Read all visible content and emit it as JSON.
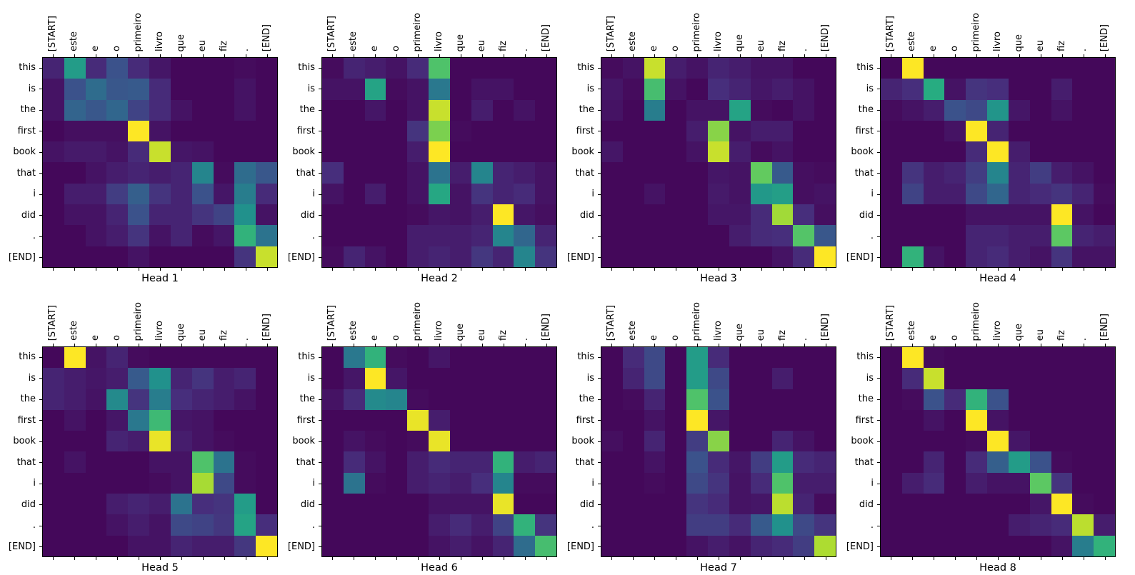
{
  "figure": {
    "background_color": "#ffffff",
    "text_color": "#000000",
    "panels_per_row": 4,
    "panel_rows": 2
  },
  "chart_data": {
    "type": "heatmap",
    "colormap": "viridis",
    "color_range": [
      0,
      1
    ],
    "grid": false,
    "x_axis_position": "top",
    "x_tick_rotation": 90,
    "x_tick_labels": [
      "[START]",
      "este",
      "e",
      "o",
      "primeiro",
      "livro",
      "que",
      "eu",
      "fiz",
      ".",
      "[END]"
    ],
    "y_tick_labels": [
      "this",
      "is",
      "the",
      "first",
      "book",
      "that",
      "i",
      "did",
      ".",
      "[END]"
    ],
    "heads": [
      {
        "title": "Head 1",
        "values": [
          [
            0.1,
            0.55,
            0.12,
            0.25,
            0.12,
            0.06,
            0.02,
            0.02,
            0.02,
            0.03,
            0.02
          ],
          [
            0.05,
            0.25,
            0.35,
            0.27,
            0.28,
            0.12,
            0.02,
            0.02,
            0.02,
            0.05,
            0.02
          ],
          [
            0.05,
            0.32,
            0.27,
            0.33,
            0.2,
            0.12,
            0.05,
            0.02,
            0.02,
            0.05,
            0.02
          ],
          [
            0.02,
            0.04,
            0.04,
            0.04,
            1.0,
            0.05,
            0.02,
            0.02,
            0.02,
            0.02,
            0.02
          ],
          [
            0.05,
            0.07,
            0.07,
            0.05,
            0.12,
            0.92,
            0.06,
            0.05,
            0.02,
            0.02,
            0.02
          ],
          [
            0.02,
            0.02,
            0.05,
            0.08,
            0.1,
            0.08,
            0.1,
            0.45,
            0.03,
            0.35,
            0.27
          ],
          [
            0.02,
            0.08,
            0.08,
            0.18,
            0.3,
            0.15,
            0.1,
            0.25,
            0.06,
            0.42,
            0.12
          ],
          [
            0.02,
            0.05,
            0.05,
            0.1,
            0.25,
            0.1,
            0.1,
            0.15,
            0.2,
            0.5,
            0.05
          ],
          [
            0.02,
            0.02,
            0.05,
            0.08,
            0.15,
            0.05,
            0.1,
            0.03,
            0.06,
            0.65,
            0.38
          ],
          [
            0.02,
            0.02,
            0.02,
            0.02,
            0.05,
            0.02,
            0.02,
            0.02,
            0.02,
            0.15,
            0.92
          ]
        ]
      },
      {
        "title": "Head 2",
        "values": [
          [
            0.03,
            0.1,
            0.08,
            0.05,
            0.12,
            0.72,
            0.02,
            0.02,
            0.02,
            0.02,
            0.02
          ],
          [
            0.05,
            0.05,
            0.58,
            0.03,
            0.05,
            0.4,
            0.02,
            0.05,
            0.05,
            0.02,
            0.02
          ],
          [
            0.02,
            0.02,
            0.06,
            0.02,
            0.05,
            0.92,
            0.02,
            0.08,
            0.02,
            0.05,
            0.02
          ],
          [
            0.02,
            0.02,
            0.02,
            0.02,
            0.15,
            0.8,
            0.03,
            0.02,
            0.02,
            0.02,
            0.02
          ],
          [
            0.02,
            0.02,
            0.02,
            0.02,
            0.08,
            1.0,
            0.02,
            0.02,
            0.02,
            0.02,
            0.02
          ],
          [
            0.13,
            0.02,
            0.02,
            0.02,
            0.05,
            0.38,
            0.08,
            0.45,
            0.1,
            0.08,
            0.05
          ],
          [
            0.05,
            0.02,
            0.08,
            0.02,
            0.05,
            0.6,
            0.05,
            0.15,
            0.1,
            0.12,
            0.05
          ],
          [
            0.02,
            0.02,
            0.02,
            0.02,
            0.03,
            0.06,
            0.05,
            0.08,
            1.0,
            0.06,
            0.04
          ],
          [
            0.02,
            0.02,
            0.02,
            0.02,
            0.08,
            0.08,
            0.08,
            0.1,
            0.45,
            0.33,
            0.1
          ],
          [
            0.03,
            0.1,
            0.05,
            0.02,
            0.08,
            0.1,
            0.08,
            0.16,
            0.1,
            0.45,
            0.15
          ]
        ]
      },
      {
        "title": "Head 3",
        "values": [
          [
            0.03,
            0.05,
            0.92,
            0.08,
            0.05,
            0.1,
            0.08,
            0.05,
            0.05,
            0.02,
            0.02
          ],
          [
            0.06,
            0.03,
            0.7,
            0.05,
            0.02,
            0.13,
            0.1,
            0.06,
            0.08,
            0.05,
            0.02
          ],
          [
            0.05,
            0.02,
            0.42,
            0.02,
            0.05,
            0.05,
            0.58,
            0.03,
            0.02,
            0.05,
            0.02
          ],
          [
            0.02,
            0.02,
            0.02,
            0.02,
            0.08,
            0.82,
            0.05,
            0.08,
            0.08,
            0.02,
            0.02
          ],
          [
            0.06,
            0.02,
            0.02,
            0.02,
            0.05,
            0.92,
            0.08,
            0.03,
            0.05,
            0.02,
            0.02
          ],
          [
            0.02,
            0.02,
            0.02,
            0.02,
            0.02,
            0.06,
            0.05,
            0.76,
            0.28,
            0.04,
            0.03
          ],
          [
            0.02,
            0.02,
            0.05,
            0.02,
            0.02,
            0.07,
            0.05,
            0.53,
            0.56,
            0.04,
            0.05
          ],
          [
            0.02,
            0.02,
            0.02,
            0.02,
            0.02,
            0.06,
            0.06,
            0.12,
            0.86,
            0.13,
            0.04
          ],
          [
            0.02,
            0.02,
            0.02,
            0.02,
            0.02,
            0.02,
            0.08,
            0.12,
            0.13,
            0.73,
            0.27
          ],
          [
            0.02,
            0.02,
            0.02,
            0.02,
            0.02,
            0.02,
            0.02,
            0.02,
            0.05,
            0.12,
            1.0
          ]
        ]
      },
      {
        "title": "Head 4",
        "values": [
          [
            0.02,
            1.0,
            0.02,
            0.02,
            0.02,
            0.02,
            0.02,
            0.02,
            0.02,
            0.02,
            0.02
          ],
          [
            0.1,
            0.13,
            0.62,
            0.05,
            0.15,
            0.13,
            0.02,
            0.02,
            0.08,
            0.02,
            0.02
          ],
          [
            0.03,
            0.05,
            0.08,
            0.25,
            0.22,
            0.52,
            0.06,
            0.02,
            0.05,
            0.02,
            0.02
          ],
          [
            0.02,
            0.02,
            0.02,
            0.05,
            1.0,
            0.1,
            0.02,
            0.02,
            0.02,
            0.02,
            0.02
          ],
          [
            0.02,
            0.02,
            0.02,
            0.02,
            0.12,
            1.0,
            0.08,
            0.02,
            0.02,
            0.02,
            0.02
          ],
          [
            0.02,
            0.15,
            0.08,
            0.1,
            0.18,
            0.45,
            0.1,
            0.18,
            0.08,
            0.05,
            0.02
          ],
          [
            0.02,
            0.2,
            0.08,
            0.08,
            0.22,
            0.33,
            0.1,
            0.12,
            0.15,
            0.1,
            0.03
          ],
          [
            0.02,
            0.02,
            0.02,
            0.02,
            0.05,
            0.05,
            0.05,
            0.05,
            1.0,
            0.05,
            0.02
          ],
          [
            0.02,
            0.02,
            0.02,
            0.02,
            0.1,
            0.1,
            0.08,
            0.08,
            0.75,
            0.1,
            0.08
          ],
          [
            0.02,
            0.65,
            0.05,
            0.02,
            0.1,
            0.12,
            0.08,
            0.05,
            0.15,
            0.05,
            0.05
          ]
        ]
      },
      {
        "title": "Head 5",
        "values": [
          [
            0.02,
            1.0,
            0.05,
            0.1,
            0.03,
            0.02,
            0.02,
            0.02,
            0.02,
            0.02,
            0.02
          ],
          [
            0.1,
            0.08,
            0.06,
            0.08,
            0.28,
            0.5,
            0.1,
            0.15,
            0.08,
            0.1,
            0.02
          ],
          [
            0.1,
            0.08,
            0.05,
            0.47,
            0.15,
            0.42,
            0.13,
            0.1,
            0.08,
            0.05,
            0.02
          ],
          [
            0.02,
            0.05,
            0.02,
            0.06,
            0.4,
            0.68,
            0.06,
            0.05,
            0.02,
            0.02,
            0.02
          ],
          [
            0.02,
            0.02,
            0.02,
            0.1,
            0.08,
            0.97,
            0.08,
            0.05,
            0.03,
            0.02,
            0.02
          ],
          [
            0.02,
            0.05,
            0.02,
            0.02,
            0.02,
            0.05,
            0.05,
            0.72,
            0.38,
            0.03,
            0.02
          ],
          [
            0.02,
            0.02,
            0.02,
            0.02,
            0.02,
            0.03,
            0.05,
            0.87,
            0.22,
            0.03,
            0.02
          ],
          [
            0.02,
            0.02,
            0.02,
            0.08,
            0.1,
            0.08,
            0.38,
            0.13,
            0.15,
            0.55,
            0.02
          ],
          [
            0.02,
            0.02,
            0.02,
            0.05,
            0.08,
            0.05,
            0.22,
            0.2,
            0.16,
            0.58,
            0.13
          ],
          [
            0.02,
            0.02,
            0.02,
            0.02,
            0.05,
            0.05,
            0.1,
            0.08,
            0.08,
            0.16,
            1.0
          ]
        ]
      },
      {
        "title": "Head 6",
        "values": [
          [
            0.02,
            0.4,
            0.65,
            0.03,
            0.02,
            0.06,
            0.02,
            0.02,
            0.02,
            0.02,
            0.02
          ],
          [
            0.02,
            0.06,
            1.0,
            0.06,
            0.02,
            0.02,
            0.02,
            0.02,
            0.02,
            0.02,
            0.02
          ],
          [
            0.05,
            0.12,
            0.47,
            0.45,
            0.03,
            0.02,
            0.02,
            0.02,
            0.02,
            0.02,
            0.02
          ],
          [
            0.02,
            0.02,
            0.02,
            0.02,
            0.97,
            0.08,
            0.02,
            0.02,
            0.02,
            0.02,
            0.02
          ],
          [
            0.02,
            0.05,
            0.03,
            0.02,
            0.03,
            0.97,
            0.02,
            0.02,
            0.02,
            0.02,
            0.02
          ],
          [
            0.02,
            0.12,
            0.05,
            0.02,
            0.08,
            0.12,
            0.1,
            0.1,
            0.65,
            0.08,
            0.1
          ],
          [
            0.02,
            0.38,
            0.03,
            0.02,
            0.08,
            0.1,
            0.08,
            0.13,
            0.45,
            0.03,
            0.03
          ],
          [
            0.02,
            0.02,
            0.02,
            0.02,
            0.02,
            0.05,
            0.05,
            0.05,
            0.97,
            0.02,
            0.02
          ],
          [
            0.02,
            0.02,
            0.02,
            0.02,
            0.02,
            0.08,
            0.12,
            0.08,
            0.2,
            0.65,
            0.15
          ],
          [
            0.02,
            0.02,
            0.02,
            0.02,
            0.02,
            0.05,
            0.08,
            0.05,
            0.1,
            0.35,
            0.7
          ]
        ]
      },
      {
        "title": "Head 7",
        "values": [
          [
            0.02,
            0.12,
            0.22,
            0.02,
            0.55,
            0.12,
            0.02,
            0.02,
            0.02,
            0.02,
            0.02
          ],
          [
            0.02,
            0.1,
            0.22,
            0.02,
            0.55,
            0.22,
            0.02,
            0.02,
            0.08,
            0.02,
            0.02
          ],
          [
            0.02,
            0.03,
            0.1,
            0.02,
            0.72,
            0.25,
            0.02,
            0.02,
            0.02,
            0.02,
            0.02
          ],
          [
            0.02,
            0.02,
            0.05,
            0.02,
            1.0,
            0.06,
            0.02,
            0.02,
            0.02,
            0.02,
            0.02
          ],
          [
            0.04,
            0.02,
            0.1,
            0.02,
            0.18,
            0.82,
            0.02,
            0.02,
            0.1,
            0.05,
            0.02
          ],
          [
            0.02,
            0.02,
            0.05,
            0.02,
            0.25,
            0.12,
            0.06,
            0.18,
            0.55,
            0.12,
            0.1
          ],
          [
            0.02,
            0.02,
            0.03,
            0.02,
            0.22,
            0.15,
            0.05,
            0.12,
            0.72,
            0.08,
            0.08
          ],
          [
            0.02,
            0.02,
            0.02,
            0.02,
            0.15,
            0.12,
            0.05,
            0.06,
            0.9,
            0.1,
            0.03
          ],
          [
            0.02,
            0.02,
            0.02,
            0.02,
            0.18,
            0.18,
            0.12,
            0.28,
            0.5,
            0.22,
            0.15
          ],
          [
            0.02,
            0.02,
            0.02,
            0.02,
            0.05,
            0.08,
            0.05,
            0.1,
            0.12,
            0.18,
            0.88
          ]
        ]
      },
      {
        "title": "Head 8",
        "values": [
          [
            0.02,
            1.0,
            0.03,
            0.02,
            0.02,
            0.02,
            0.02,
            0.02,
            0.02,
            0.02,
            0.02
          ],
          [
            0.02,
            0.12,
            0.92,
            0.02,
            0.02,
            0.02,
            0.02,
            0.02,
            0.02,
            0.02,
            0.02
          ],
          [
            0.02,
            0.03,
            0.25,
            0.12,
            0.65,
            0.25,
            0.02,
            0.02,
            0.02,
            0.02,
            0.02
          ],
          [
            0.02,
            0.02,
            0.05,
            0.02,
            1.0,
            0.05,
            0.02,
            0.02,
            0.02,
            0.02,
            0.02
          ],
          [
            0.02,
            0.02,
            0.02,
            0.02,
            0.03,
            1.0,
            0.06,
            0.02,
            0.02,
            0.02,
            0.02
          ],
          [
            0.02,
            0.02,
            0.1,
            0.02,
            0.12,
            0.3,
            0.55,
            0.25,
            0.03,
            0.02,
            0.02
          ],
          [
            0.02,
            0.08,
            0.12,
            0.02,
            0.08,
            0.05,
            0.05,
            0.75,
            0.15,
            0.02,
            0.02
          ],
          [
            0.02,
            0.02,
            0.02,
            0.02,
            0.02,
            0.02,
            0.02,
            0.06,
            1.0,
            0.03,
            0.02
          ],
          [
            0.02,
            0.02,
            0.02,
            0.02,
            0.02,
            0.02,
            0.08,
            0.1,
            0.12,
            0.9,
            0.08
          ],
          [
            0.02,
            0.02,
            0.02,
            0.02,
            0.02,
            0.02,
            0.02,
            0.02,
            0.05,
            0.42,
            0.65
          ]
        ]
      }
    ]
  }
}
